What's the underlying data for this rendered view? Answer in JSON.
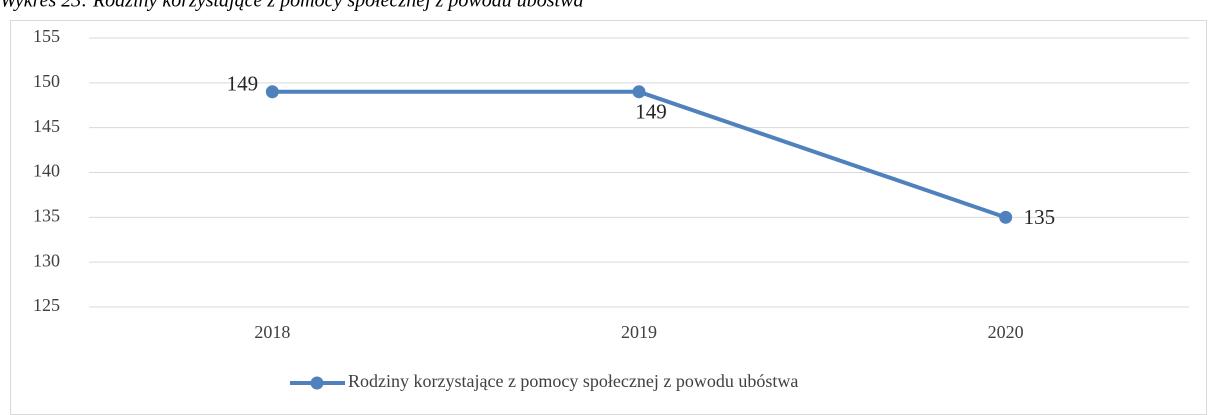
{
  "chart_data": {
    "type": "line",
    "title": "Wykres 23: Rodziny korzystające z pomocy społecznej z powodu ubóstwa",
    "categories": [
      "2018",
      "2019",
      "2020"
    ],
    "series": [
      {
        "name": "Rodziny korzystające z pomocy społecznej z powodu ubóstwa",
        "color": "#4f81bd",
        "values": [
          149,
          149,
          135
        ]
      }
    ],
    "ylim": [
      125,
      155
    ],
    "yticks": [
      125,
      130,
      135,
      140,
      145,
      150,
      155
    ],
    "grid": true,
    "legend": "bottom"
  }
}
